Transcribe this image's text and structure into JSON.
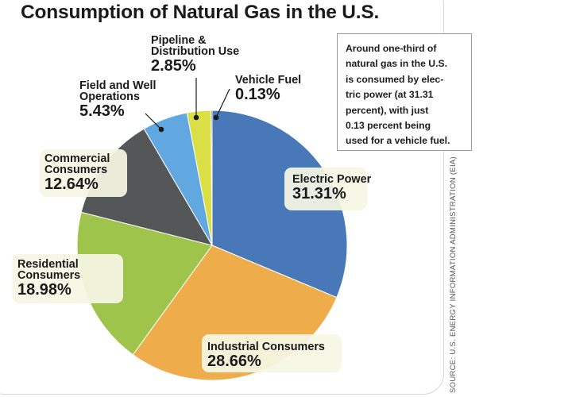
{
  "title": "Consumption of Natural Gas in the U.S.",
  "note": {
    "lines": [
      "Around one-third of",
      "natural gas in the U.S.",
      "is consumed by elec-",
      "tric power (at 31.31",
      "percent), with just",
      "0.13 percent being",
      "used for a vehicle fuel."
    ]
  },
  "source": "SOURCE: U.S. ENERGY INFORMATION ADMINISTRATION (EIA)",
  "chart_data": {
    "type": "pie",
    "title": "Consumption of Natural Gas in the U.S.",
    "slices": [
      {
        "key": "electric-power",
        "name_lines": [
          "Electric Power"
        ],
        "value": 31.31,
        "value_label": "31.31%",
        "color": "#4878b8"
      },
      {
        "key": "industrial-consumers",
        "name_lines": [
          "Industrial Consumers"
        ],
        "value": 28.66,
        "value_label": "28.66%",
        "color": "#eeac4a"
      },
      {
        "key": "residential-consumers",
        "name_lines": [
          "Residential",
          "Consumers"
        ],
        "value": 18.98,
        "value_label": "18.98%",
        "color": "#9fc44c"
      },
      {
        "key": "commercial-consumers",
        "name_lines": [
          "Commercial",
          "Consumers"
        ],
        "value": 12.64,
        "value_label": "12.64%",
        "color": "#545758"
      },
      {
        "key": "field-and-well-operations",
        "name_lines": [
          "Field and Well",
          "Operations"
        ],
        "value": 5.43,
        "value_label": "5.43%",
        "color": "#62a8e0"
      },
      {
        "key": "pipeline-and-distribution-use",
        "name_lines": [
          "Pipeline &",
          "Distribution Use"
        ],
        "value": 2.85,
        "value_label": "2.85%",
        "color": "#d9df45"
      },
      {
        "key": "vehicle-fuel",
        "name_lines": [
          "Vehicle Fuel"
        ],
        "value": 0.13,
        "value_label": "0.13%",
        "color": "#2e3338"
      }
    ],
    "colors": {
      "label_highlight": "#f6f6e4"
    }
  }
}
